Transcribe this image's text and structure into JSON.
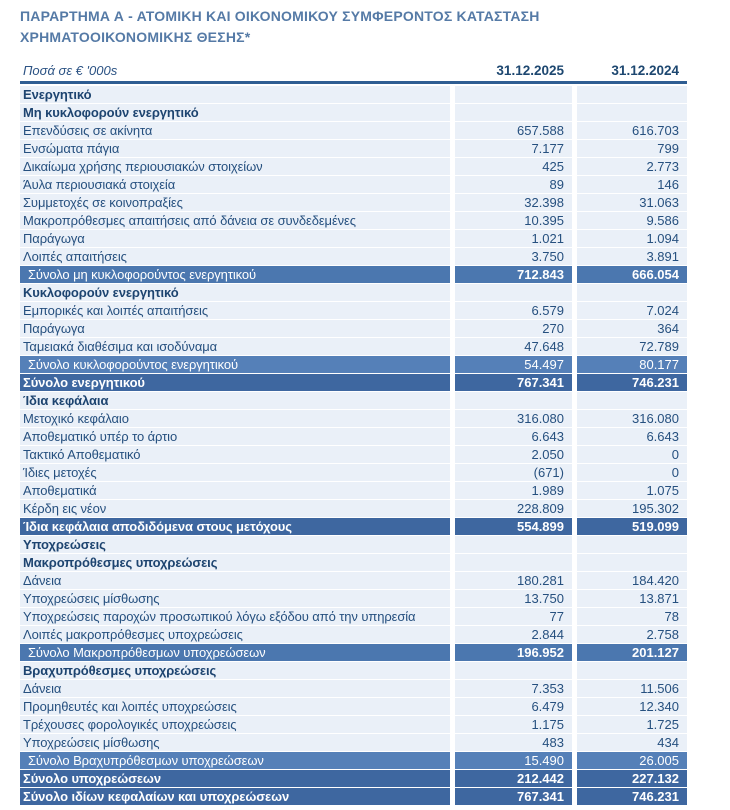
{
  "title": "ΠΑΡΑΡΤΗΜΑ Α - ΑΤΟΜΙΚΗ ΚΑΙ ΟΙΚΟΝΟΜΙΚΟΥ ΣΥΜΦΕΡΟΝΤΟΣ ΚΑΤΑΣΤΑΣΗ ΧΡΗΜΑΤΟΟΙΚΟΝΟΜΙΚΗΣ ΘΕΣΗΣ*",
  "colors": {
    "title_text": "#557AA6",
    "body_text": "#26507F",
    "header_rule": "#2E5D92",
    "row_background": "#EAF0F8",
    "subtotal_light_background": "#5580B8",
    "subtotal_strong_background": "#4B77AF",
    "total_background": "#3E67A0",
    "total_text": "#FFFFFF"
  },
  "table": {
    "unit_label": "Ποσά σε  € '000s",
    "columns": [
      "31.12.2025",
      "31.12.2024"
    ],
    "rows": [
      {
        "type": "section",
        "label": "Ενεργητικό",
        "v2025": "",
        "v2024": ""
      },
      {
        "type": "section",
        "label": "Μη κυκλοφορούν ενεργητικό",
        "v2025": "",
        "v2024": ""
      },
      {
        "type": "item",
        "label": "Επενδύσεις σε ακίνητα",
        "v2025": "657.588",
        "v2024": "616.703"
      },
      {
        "type": "item",
        "label": "Ενσώματα πάγια",
        "v2025": "7.177",
        "v2024": "799"
      },
      {
        "type": "item",
        "label": "Δικαίωμα χρήσης περιουσιακών στοιχείων",
        "v2025": "425",
        "v2024": "2.773"
      },
      {
        "type": "item",
        "label": "Άυλα περιουσιακά στοιχεία",
        "v2025": "89",
        "v2024": "146"
      },
      {
        "type": "item",
        "label": "Συμμετοχές σε κοινοπραξίες",
        "v2025": "32.398",
        "v2024": "31.063"
      },
      {
        "type": "item",
        "label": "Μακροπρόθεσμες απαιτήσεις από δάνεια σε συνδεδεμένες",
        "v2025": "10.395",
        "v2024": "9.586"
      },
      {
        "type": "item",
        "label": "Παράγωγα",
        "v2025": "1.021",
        "v2024": "1.094"
      },
      {
        "type": "item",
        "label": "Λοιπές απαιτήσεις",
        "v2025": "3.750",
        "v2024": "3.891"
      },
      {
        "type": "subtotal-strong",
        "label": "Σύνολο μη κυκλοφορούντος ενεργητικού",
        "v2025": "712.843",
        "v2024": "666.054"
      },
      {
        "type": "section",
        "label": "Κυκλοφορούν ενεργητικό",
        "v2025": "",
        "v2024": ""
      },
      {
        "type": "item",
        "label": "Εμπορικές και λοιπές απαιτήσεις",
        "v2025": "6.579",
        "v2024": "7.024"
      },
      {
        "type": "item",
        "label": "Παράγωγα",
        "v2025": "270",
        "v2024": "364"
      },
      {
        "type": "item",
        "label": "Ταμειακά διαθέσιμα και ισοδύναμα",
        "v2025": "47.648",
        "v2024": "72.789"
      },
      {
        "type": "subtotal-light",
        "label": "Σύνολο κυκλοφορούντος ενεργητικού",
        "v2025": "54.497",
        "v2024": "80.177"
      },
      {
        "type": "total",
        "label": "Σύνολο ενεργητικού",
        "v2025": "767.341",
        "v2024": "746.231"
      },
      {
        "type": "section",
        "label": "Ίδια κεφάλαια",
        "v2025": "",
        "v2024": ""
      },
      {
        "type": "item",
        "label": "Μετοχικό κεφάλαιο",
        "v2025": "316.080",
        "v2024": "316.080"
      },
      {
        "type": "item",
        "label": "Αποθεματικό υπέρ το άρτιο",
        "v2025": "6.643",
        "v2024": "6.643"
      },
      {
        "type": "item",
        "label": "Τακτικό Αποθεματικό",
        "v2025": "2.050",
        "v2024": "0"
      },
      {
        "type": "item",
        "label": "Ίδιες μετοχές",
        "v2025": "(671)",
        "v2024": "0"
      },
      {
        "type": "item",
        "label": "Αποθεματικά",
        "v2025": "1.989",
        "v2024": "1.075"
      },
      {
        "type": "item",
        "label": "Κέρδη εις νέον",
        "v2025": "228.809",
        "v2024": "195.302"
      },
      {
        "type": "total",
        "label": "Ίδια κεφάλαια αποδιδόμενα στους μετόχους",
        "v2025": "554.899",
        "v2024": "519.099"
      },
      {
        "type": "section",
        "label": "Υποχρεώσεις",
        "v2025": "",
        "v2024": ""
      },
      {
        "type": "section",
        "label": "Μακροπρόθεσμες υποχρεώσεις",
        "v2025": "",
        "v2024": ""
      },
      {
        "type": "item",
        "label": "Δάνεια",
        "v2025": "180.281",
        "v2024": "184.420"
      },
      {
        "type": "item",
        "label": "Υποχρεώσεις μίσθωσης",
        "v2025": "13.750",
        "v2024": "13.871"
      },
      {
        "type": "item",
        "label": "Υποχρεώσεις παροχών προσωπικού λόγω εξόδου από την υπηρεσία",
        "v2025": "77",
        "v2024": "78"
      },
      {
        "type": "item",
        "label": "Λοιπές μακροπρόθεσμες υποχρεώσεις",
        "v2025": "2.844",
        "v2024": "2.758"
      },
      {
        "type": "subtotal-strong",
        "label": "Σύνολο Μακροπρόθεσμων υποχρεώσεων",
        "v2025": "196.952",
        "v2024": "201.127"
      },
      {
        "type": "section",
        "label": "Βραχυπρόθεσμες υποχρεώσεις",
        "v2025": "",
        "v2024": ""
      },
      {
        "type": "item",
        "label": "Δάνεια",
        "v2025": "7.353",
        "v2024": "11.506"
      },
      {
        "type": "item",
        "label": "Προμηθευτές και λοιπές υποχρεώσεις",
        "v2025": "6.479",
        "v2024": "12.340"
      },
      {
        "type": "item",
        "label": "Τρέχουσες φορολογικές υποχρεώσεις",
        "v2025": "1.175",
        "v2024": "1.725"
      },
      {
        "type": "item",
        "label": "Υποχρεώσεις μίσθωσης",
        "v2025": "483",
        "v2024": "434"
      },
      {
        "type": "subtotal-light",
        "label": "Σύνολο Βραχυπρόθεσμων υποχρεώσεων",
        "v2025": "15.490",
        "v2024": "26.005"
      },
      {
        "type": "total",
        "label": "Σύνολο υποχρεώσεων",
        "v2025": "212.442",
        "v2024": "227.132"
      },
      {
        "type": "total",
        "label": "Σύνολο ιδίων κεφαλαίων και υποχρεώσεων",
        "v2025": "767.341",
        "v2024": "746.231"
      }
    ]
  }
}
